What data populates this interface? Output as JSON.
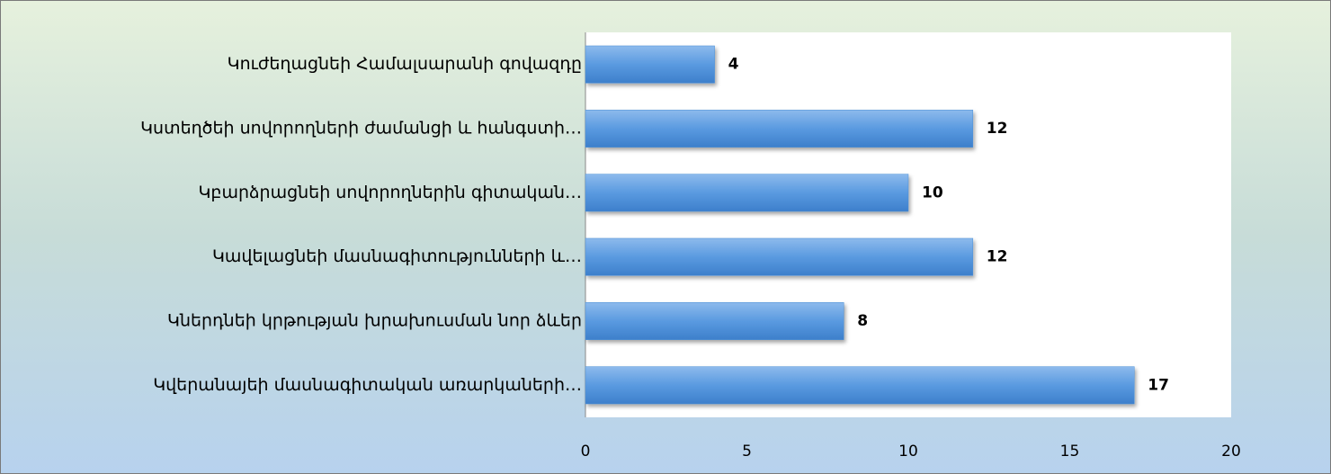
{
  "chart_data": {
    "type": "bar",
    "orientation": "horizontal",
    "categories": [
      "Կուժեղացնեի Համալսարանի գովազդը",
      "Կստեղծեի սովորողների ժամանցի և հանգստի…",
      "Կբարձրացնեի սովորողներին գիտական…",
      "Կավելացնեի մասնագիտությունների և…",
      "Կներդնեի կրթության խրախուսման նոր ձևեր",
      "Կվերանայեի մասնագիտական առարկաների…"
    ],
    "values": [
      4,
      12,
      10,
      12,
      8,
      17
    ],
    "color": "#4a8fd6",
    "xlim": [
      0,
      20
    ],
    "xticks": [
      0,
      5,
      10,
      15,
      20
    ],
    "grid": false
  }
}
